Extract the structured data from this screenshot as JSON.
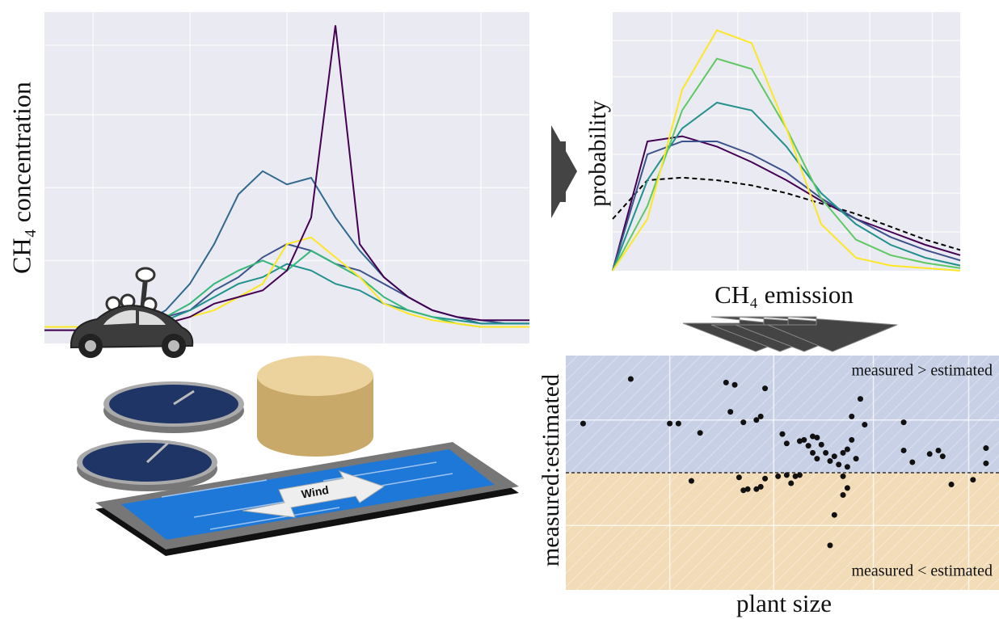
{
  "chart_data": [
    {
      "type": "line",
      "y_label": "CH₄ concentration",
      "xlim": [
        0,
        100
      ],
      "ylim": [
        0,
        100
      ],
      "xticks": [
        10,
        30,
        50,
        70,
        90
      ],
      "yticks": [
        25,
        47,
        69,
        90
      ],
      "grid": true,
      "x": [
        0,
        5,
        10,
        15,
        20,
        25,
        30,
        35,
        40,
        45,
        50,
        55,
        60,
        65,
        70,
        75,
        80,
        85,
        90,
        95,
        100
      ],
      "series": [
        {
          "color": "#31688e",
          "values": [
            5,
            5,
            5,
            5,
            6,
            10,
            18,
            30,
            45,
            52,
            48,
            50,
            38,
            28,
            20,
            14,
            10,
            8,
            6,
            6,
            6
          ]
        },
        {
          "color": "#3b528b",
          "values": [
            5,
            5,
            5,
            5,
            6,
            8,
            10,
            16,
            20,
            26,
            30,
            28,
            24,
            22,
            18,
            14,
            10,
            8,
            7,
            6,
            6
          ]
        },
        {
          "color": "#21918c",
          "values": [
            5,
            5,
            5,
            5,
            6,
            7,
            10,
            14,
            18,
            20,
            24,
            22,
            18,
            16,
            12,
            10,
            8,
            7,
            6,
            6,
            6
          ]
        },
        {
          "color": "#35b779",
          "values": [
            4,
            4,
            4,
            5,
            6,
            8,
            12,
            18,
            22,
            25,
            22,
            28,
            24,
            20,
            14,
            10,
            8,
            6,
            5,
            5,
            5
          ]
        },
        {
          "color": "#fde725",
          "values": [
            5,
            5,
            5,
            5,
            5,
            6,
            8,
            10,
            14,
            18,
            30,
            32,
            26,
            20,
            12,
            9,
            7,
            6,
            5,
            5,
            5
          ]
        },
        {
          "color": "#440154",
          "values": [
            4,
            4,
            4,
            4,
            5,
            6,
            8,
            12,
            14,
            16,
            22,
            38,
            96,
            30,
            20,
            14,
            10,
            8,
            7,
            7,
            7
          ]
        }
      ]
    },
    {
      "type": "line",
      "x_label": "CH₄ emission",
      "y_label": "probability",
      "xlim": [
        0,
        100
      ],
      "ylim": [
        0,
        100
      ],
      "xticks": [
        17,
        36,
        56,
        74,
        92
      ],
      "yticks": [
        15,
        30,
        45,
        60,
        75,
        89
      ],
      "grid": true,
      "x": [
        0,
        10,
        20,
        30,
        40,
        50,
        60,
        70,
        80,
        90,
        100
      ],
      "series": [
        {
          "color": "#000000",
          "dashed": true,
          "values": [
            20,
            35,
            36,
            35,
            33,
            30,
            26,
            22,
            17,
            12,
            8
          ]
        },
        {
          "color": "#440154",
          "values": [
            0,
            50,
            52,
            48,
            42,
            35,
            27,
            20,
            15,
            10,
            6
          ]
        },
        {
          "color": "#3b528b",
          "values": [
            0,
            45,
            50,
            50,
            45,
            38,
            28,
            20,
            13,
            8,
            4
          ]
        },
        {
          "color": "#21918c",
          "values": [
            0,
            35,
            55,
            65,
            62,
            48,
            30,
            18,
            10,
            5,
            2
          ]
        },
        {
          "color": "#5ec962",
          "values": [
            0,
            25,
            62,
            82,
            78,
            55,
            28,
            12,
            6,
            3,
            1
          ]
        },
        {
          "color": "#fde725",
          "values": [
            0,
            20,
            70,
            93,
            88,
            55,
            18,
            5,
            2,
            1,
            0
          ]
        }
      ]
    },
    {
      "type": "scatter",
      "x_label": "plant size",
      "y_label": "measured:estimated",
      "annotations": [
        "measured > estimated",
        "measured < estimated"
      ],
      "xlim": [
        0,
        100
      ],
      "ylim": [
        -100,
        100
      ],
      "xticks": [
        24,
        48,
        71,
        93
      ],
      "yticks": [
        -45,
        45
      ],
      "hline": 0,
      "grid": true,
      "series": [
        {
          "color": "#111111",
          "x": [
            4,
            15,
            24,
            26,
            31,
            37,
            39,
            38,
            41,
            44,
            45,
            46,
            50,
            51,
            54,
            55,
            56,
            57,
            58,
            57,
            58,
            59,
            60,
            61,
            62,
            63,
            64,
            65,
            65,
            66,
            66,
            68,
            69,
            67,
            78,
            78,
            80,
            84,
            86,
            87,
            97,
            97,
            29,
            40,
            41,
            42,
            44,
            45,
            46,
            49,
            51,
            52,
            53,
            54,
            64,
            64,
            62,
            61,
            65,
            89,
            94
          ],
          "values": [
            42,
            80,
            42,
            42,
            34,
            77,
            75,
            52,
            43,
            45,
            48,
            72,
            33,
            25,
            27,
            28,
            23,
            17,
            12,
            31,
            30,
            24,
            17,
            10,
            14,
            7,
            17,
            20,
            5,
            28,
            48,
            63,
            41,
            12,
            43,
            19,
            9,
            16,
            19,
            14,
            21,
            8,
            -7,
            -4,
            -15,
            -14,
            -14,
            -12,
            -5,
            -3,
            -2,
            -9,
            -3,
            -2,
            -3,
            -19,
            -36,
            -62,
            -13,
            -10,
            -6
          ]
        }
      ]
    }
  ],
  "illustration": {
    "arrow_label": "Wind"
  }
}
